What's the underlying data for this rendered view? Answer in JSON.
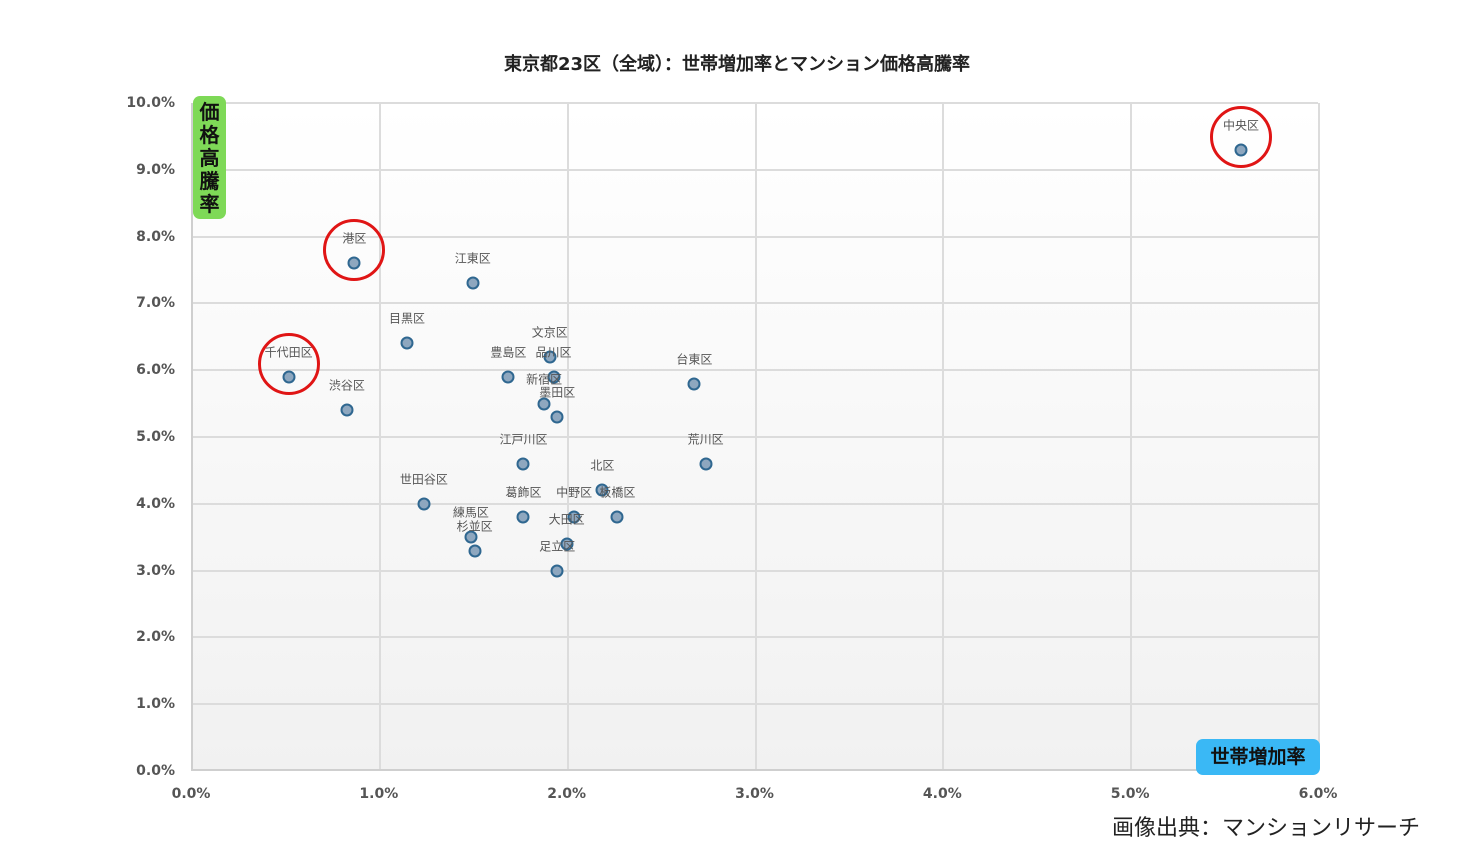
{
  "chart_data": {
    "type": "scatter",
    "title": "東京都23区（全域）：世帯増加率とマンション価格高騰率",
    "xlabel": "世帯増加率",
    "ylabel": "価格高騰率",
    "xlim": [
      0,
      6
    ],
    "ylim": [
      0,
      10
    ],
    "grid": true,
    "x_ticks": [
      "0.0%",
      "1.0%",
      "2.0%",
      "3.0%",
      "4.0%",
      "5.0%",
      "6.0%"
    ],
    "y_ticks": [
      "0.0%",
      "1.0%",
      "2.0%",
      "3.0%",
      "4.0%",
      "5.0%",
      "6.0%",
      "7.0%",
      "8.0%",
      "9.0%",
      "10.0%"
    ],
    "points": [
      {
        "label": "中央区",
        "x": 5.59,
        "y": 9.3,
        "highlighted": true
      },
      {
        "label": "港区",
        "x": 0.87,
        "y": 7.6,
        "highlighted": true
      },
      {
        "label": "千代田区",
        "x": 0.52,
        "y": 5.9,
        "highlighted": true
      },
      {
        "label": "渋谷区",
        "x": 0.83,
        "y": 5.4
      },
      {
        "label": "目黒区",
        "x": 1.15,
        "y": 6.4
      },
      {
        "label": "江東区",
        "x": 1.5,
        "y": 7.3
      },
      {
        "label": "文京区",
        "x": 1.91,
        "y": 6.2
      },
      {
        "label": "豊島区",
        "x": 1.69,
        "y": 5.9
      },
      {
        "label": "品川区",
        "x": 1.93,
        "y": 5.9
      },
      {
        "label": "新宿区",
        "x": 1.88,
        "y": 5.5
      },
      {
        "label": "墨田区",
        "x": 1.95,
        "y": 5.3
      },
      {
        "label": "台東区",
        "x": 2.68,
        "y": 5.8
      },
      {
        "label": "荒川区",
        "x": 2.74,
        "y": 4.6
      },
      {
        "label": "江戸川区",
        "x": 1.77,
        "y": 4.6
      },
      {
        "label": "世田谷区",
        "x": 1.24,
        "y": 4.0
      },
      {
        "label": "北区",
        "x": 2.19,
        "y": 4.2
      },
      {
        "label": "葛飾区",
        "x": 1.77,
        "y": 3.8
      },
      {
        "label": "中野区",
        "x": 2.04,
        "y": 3.8
      },
      {
        "label": "板橋区",
        "x": 2.27,
        "y": 3.8
      },
      {
        "label": "練馬区",
        "x": 1.49,
        "y": 3.5
      },
      {
        "label": "杉並区",
        "x": 1.51,
        "y": 3.3
      },
      {
        "label": "大田区",
        "x": 2.0,
        "y": 3.4
      },
      {
        "label": "足立区",
        "x": 1.95,
        "y": 3.0
      }
    ],
    "annotations": [
      "red circles around 中央区, 港区, 千代田区"
    ]
  },
  "badges": {
    "y_axis": [
      "価",
      "格",
      "高",
      "騰",
      "率"
    ],
    "x_axis": "世帯増加率"
  },
  "source": "画像出典：マンションリサーチ",
  "colors": {
    "point_fill": "#8ea7bf",
    "point_edge": "#2f6790",
    "highlight_circle": "#e01515",
    "y_badge": "#7ed957",
    "x_badge": "#3ab8f5"
  }
}
